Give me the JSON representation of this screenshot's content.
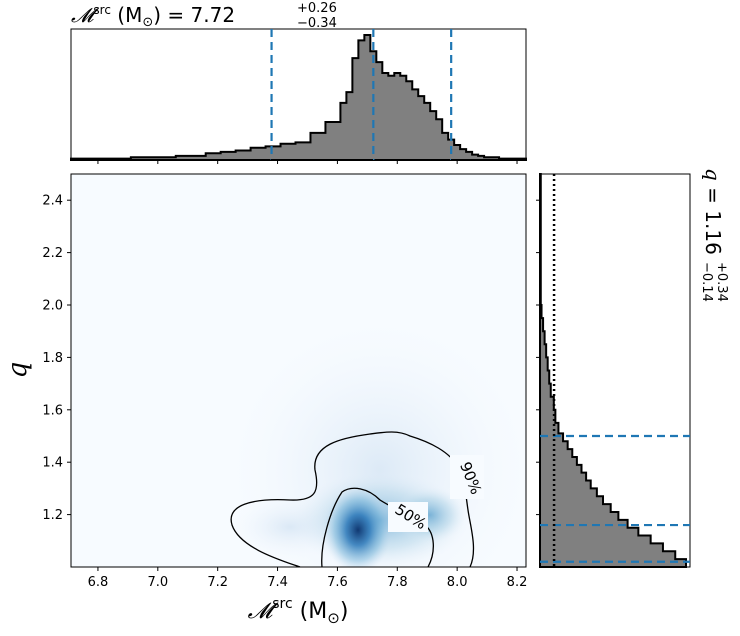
{
  "chart_data": [
    {
      "type": "area",
      "panel": "marginal-top",
      "title_var": "𝓜",
      "title_sup": "src",
      "title_unit": " (M",
      "title_sun": "⊙",
      "title_eq": ") = 7.72",
      "title_plus": "+0.26",
      "title_minus": "−0.34",
      "xlim": [
        6.71,
        8.23
      ],
      "bins_x": [
        6.71,
        6.76,
        6.81,
        6.86,
        6.91,
        6.96,
        7.01,
        7.06,
        7.11,
        7.16,
        7.21,
        7.26,
        7.31,
        7.36,
        7.41,
        7.46,
        7.51,
        7.56,
        7.61,
        7.63,
        7.65,
        7.67,
        7.69,
        7.71,
        7.73,
        7.75,
        7.77,
        7.79,
        7.81,
        7.83,
        7.85,
        7.87,
        7.89,
        7.91,
        7.93,
        7.95,
        7.97,
        7.99,
        8.01,
        8.03,
        8.05,
        8.07,
        8.09,
        8.11,
        8.14,
        8.17,
        8.2,
        8.23
      ],
      "density": [
        0.01,
        0.01,
        0.01,
        0.01,
        0.02,
        0.02,
        0.02,
        0.03,
        0.03,
        0.05,
        0.06,
        0.07,
        0.09,
        0.1,
        0.12,
        0.13,
        0.2,
        0.28,
        0.42,
        0.5,
        0.75,
        0.88,
        0.92,
        0.8,
        0.72,
        0.64,
        0.62,
        0.64,
        0.62,
        0.58,
        0.52,
        0.47,
        0.42,
        0.36,
        0.3,
        0.2,
        0.15,
        0.11,
        0.08,
        0.06,
        0.04,
        0.03,
        0.02,
        0.02,
        0.01,
        0.01,
        0.01
      ],
      "quantiles": [
        7.38,
        7.72,
        7.98
      ]
    },
    {
      "type": "heatmap",
      "panel": "joint",
      "xlabel_var": "𝓜",
      "xlabel_sup": "src",
      "xlabel_unit": " (M",
      "xlabel_sun": "⊙",
      "xlabel_close": ")",
      "ylabel": "q",
      "xlim": [
        6.71,
        8.23
      ],
      "ylim": [
        1.0,
        2.5
      ],
      "xticks": [
        "6.8",
        "7.0",
        "7.2",
        "7.4",
        "7.6",
        "7.8",
        "8.0",
        "8.2"
      ],
      "yticks": [
        "1.2",
        "1.4",
        "1.6",
        "1.8",
        "2.0",
        "2.2",
        "2.4"
      ],
      "colormap": "Blues",
      "contours": [
        {
          "label": "50%",
          "label_at": [
            7.85,
            1.19
          ]
        },
        {
          "label": "90%",
          "label_at": [
            8.04,
            1.35
          ]
        }
      ]
    },
    {
      "type": "area",
      "panel": "marginal-right",
      "title_var": "q",
      "title_eq": " = 1.16",
      "title_plus": "+0.34",
      "title_minus": "−0.14",
      "ylim": [
        1.0,
        2.5
      ],
      "bins_y": [
        1.0,
        1.03,
        1.06,
        1.09,
        1.12,
        1.15,
        1.18,
        1.21,
        1.24,
        1.27,
        1.3,
        1.33,
        1.36,
        1.39,
        1.42,
        1.45,
        1.48,
        1.51,
        1.55,
        1.6,
        1.65,
        1.7,
        1.75,
        1.8,
        1.85,
        1.9,
        1.95,
        2.0,
        2.5
      ],
      "density": [
        0.95,
        0.88,
        0.8,
        0.72,
        0.64,
        0.57,
        0.51,
        0.46,
        0.41,
        0.37,
        0.33,
        0.3,
        0.27,
        0.24,
        0.21,
        0.18,
        0.15,
        0.12,
        0.1,
        0.09,
        0.07,
        0.06,
        0.05,
        0.04,
        0.03,
        0.02,
        0.01,
        0.005
      ],
      "quantiles": [
        1.02,
        1.16,
        1.5
      ],
      "reference_line": 1.05
    }
  ]
}
